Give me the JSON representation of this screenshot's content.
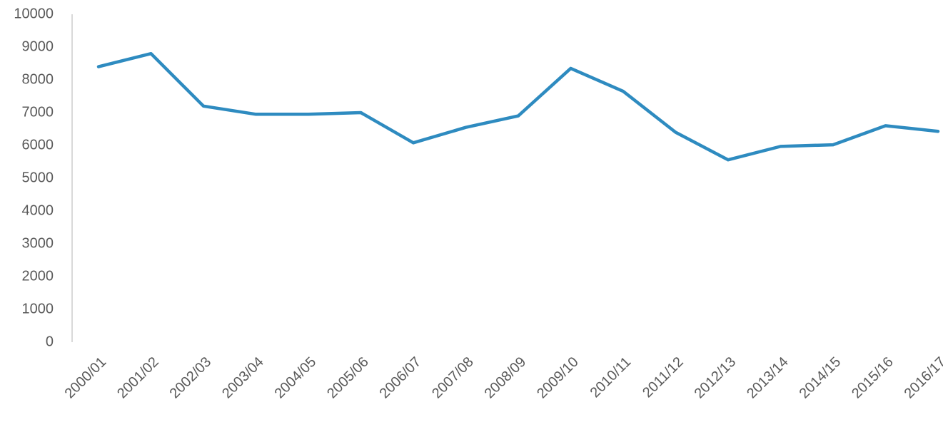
{
  "chart_data": {
    "type": "line",
    "categories": [
      "2000/01",
      "2001/02",
      "2002/03",
      "2003/04",
      "2004/05",
      "2005/06",
      "2006/07",
      "2007/08",
      "2008/09",
      "2009/10",
      "2010/11",
      "2011/12",
      "2012/13",
      "2013/14",
      "2014/15",
      "2015/16",
      "2016/17"
    ],
    "series": [
      {
        "color": "#2e8bc0",
        "values": [
          8400,
          8800,
          7200,
          6950,
          6950,
          7000,
          6080,
          6550,
          6900,
          8350,
          7650,
          6400,
          5560,
          5970,
          6020,
          6600,
          6430
        ]
      }
    ],
    "ylim": [
      0,
      10000
    ],
    "yticks": [
      0,
      1000,
      2000,
      3000,
      4000,
      5000,
      6000,
      7000,
      8000,
      9000,
      10000
    ],
    "grid": false
  }
}
